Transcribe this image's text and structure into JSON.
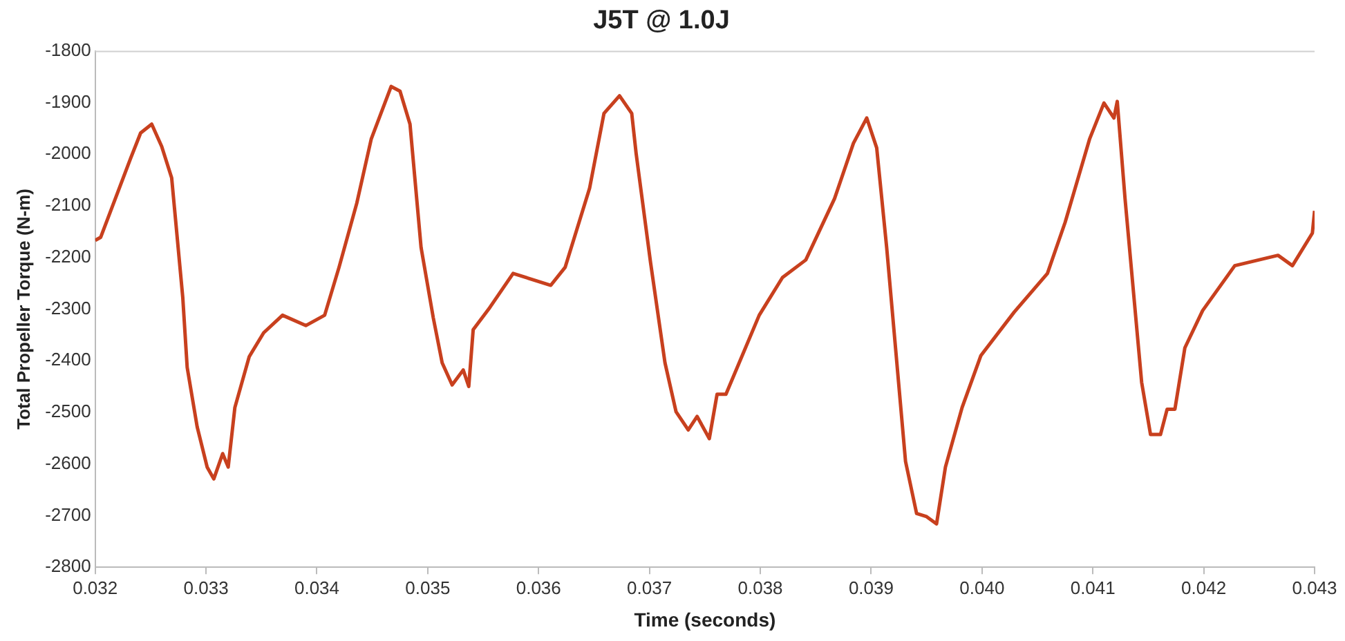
{
  "chart_data": {
    "type": "line",
    "title": "J5T @ 1.0J",
    "xlabel": "Time (seconds)",
    "ylabel": "Total Propeller Torque (N-m)",
    "xlim": [
      0.032,
      0.043
    ],
    "xticks": [
      0.032,
      0.033,
      0.034,
      0.035,
      0.036,
      0.037,
      0.038,
      0.039,
      {
        "value": 0.04,
        "label": "0.040"
      },
      0.041,
      0.042,
      0.043
    ],
    "ylim": [
      -2800,
      -1800
    ],
    "yticks": [
      -2800,
      -2700,
      -2600,
      -2500,
      -2400,
      -2300,
      -2200,
      -2100,
      -2000,
      -1900,
      -1800
    ],
    "grid": false,
    "legend": false,
    "marker": "none",
    "line_style": "solid",
    "series": [
      {
        "color": "#c8401e",
        "x": [
          0.032,
          0.03205,
          0.03232,
          0.03241,
          0.03251,
          0.0326,
          0.03269,
          0.03279,
          0.03283,
          0.03292,
          0.03301,
          0.03307,
          0.03315,
          0.0332,
          0.03326,
          0.03339,
          0.03352,
          0.03369,
          0.0339,
          0.03407,
          0.0342,
          0.03436,
          0.03449,
          0.03467,
          0.03475,
          0.03484,
          0.03494,
          0.03505,
          0.03513,
          0.03522,
          0.03532,
          0.03537,
          0.03541,
          0.03556,
          0.03577,
          0.03611,
          0.03624,
          0.03646,
          0.03659,
          0.03673,
          0.03684,
          0.03688,
          0.03701,
          0.03714,
          0.03724,
          0.03735,
          0.03743,
          0.03754,
          0.03761,
          0.03769,
          0.03799,
          0.0382,
          0.03841,
          0.03867,
          0.03884,
          0.03896,
          0.03905,
          0.03914,
          0.03931,
          0.03941,
          0.0395,
          0.03959,
          0.03967,
          0.03982,
          0.03999,
          0.04029,
          0.04059,
          0.04075,
          0.04097,
          0.0411,
          0.04119,
          0.04122,
          0.04129,
          0.04144,
          0.04152,
          0.04161,
          0.04167,
          0.04174,
          0.04183,
          0.04199,
          0.04228,
          0.04267,
          0.0428,
          0.04298,
          0.043
        ],
        "values": [
          -2167,
          -2161,
          -2008,
          -1959,
          -1942,
          -1985,
          -2046,
          -2277,
          -2413,
          -2528,
          -2606,
          -2629,
          -2580,
          -2606,
          -2491,
          -2392,
          -2346,
          -2312,
          -2332,
          -2312,
          -2219,
          -2095,
          -1971,
          -1869,
          -1878,
          -1942,
          -2181,
          -2317,
          -2404,
          -2447,
          -2418,
          -2450,
          -2340,
          -2297,
          -2231,
          -2254,
          -2219,
          -2066,
          -1921,
          -1887,
          -1921,
          -1999,
          -2210,
          -2404,
          -2499,
          -2534,
          -2508,
          -2551,
          -2465,
          -2465,
          -2312,
          -2239,
          -2205,
          -2086,
          -1979,
          -1930,
          -1988,
          -2181,
          -2595,
          -2696,
          -2702,
          -2716,
          -2606,
          -2491,
          -2390,
          -2306,
          -2231,
          -2132,
          -1971,
          -1901,
          -1930,
          -1898,
          -2086,
          -2442,
          -2543,
          -2543,
          -2494,
          -2494,
          -2375,
          -2303,
          -2216,
          -2196,
          -2216,
          -2153,
          -2110
        ]
      }
    ]
  }
}
